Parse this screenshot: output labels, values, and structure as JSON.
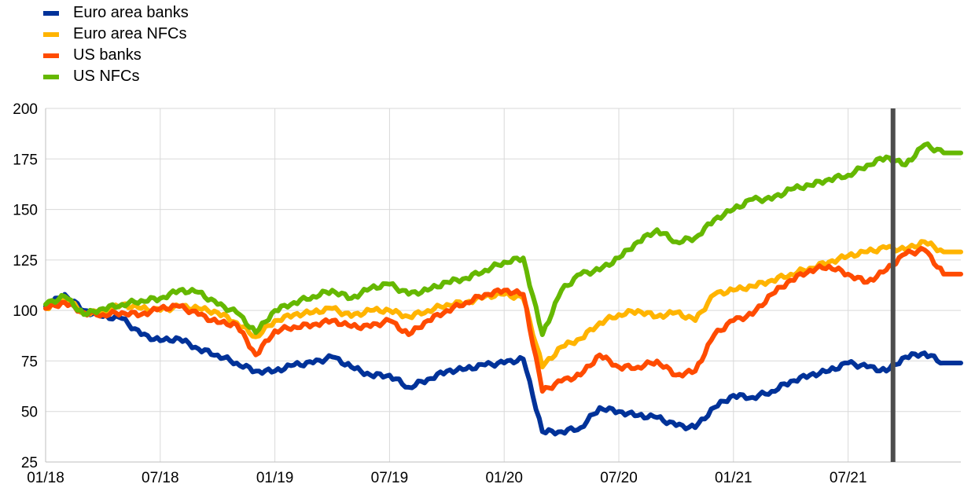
{
  "colors": {
    "euro_banks": "#003299",
    "euro_nfcs": "#FFB400",
    "us_banks": "#FF4B00",
    "us_nfcs": "#65B800",
    "vline": "#4d4d4d",
    "grid": "#d9d9d9"
  },
  "chart_data": {
    "type": "line",
    "title": "",
    "xlabel": "",
    "ylabel": "",
    "ylim": [
      25,
      200
    ],
    "yticks": [
      25,
      50,
      75,
      100,
      125,
      150,
      175,
      200
    ],
    "xlim": [
      "2018-01-01",
      "2021-12-31"
    ],
    "xticks": [
      "01/18",
      "07/18",
      "01/19",
      "07/19",
      "01/20",
      "07/20",
      "01/21",
      "07/21"
    ],
    "grid": true,
    "legend_position": "top-left",
    "vertical_marker": "2021-09",
    "series": [
      {
        "name": "Euro area banks",
        "x": [
          "2018-01",
          "2018-02",
          "2018-03",
          "2018-04",
          "2018-05",
          "2018-06",
          "2018-07",
          "2018-08",
          "2018-09",
          "2018-10",
          "2018-11",
          "2018-12",
          "2019-01",
          "2019-02",
          "2019-03",
          "2019-04",
          "2019-05",
          "2019-06",
          "2019-07",
          "2019-08",
          "2019-09",
          "2019-10",
          "2019-11",
          "2019-12",
          "2020-01",
          "2020-02",
          "2020-03",
          "2020-04",
          "2020-05",
          "2020-06",
          "2020-07",
          "2020-08",
          "2020-09",
          "2020-10",
          "2020-11",
          "2020-12",
          "2021-01",
          "2021-02",
          "2021-03",
          "2021-04",
          "2021-05",
          "2021-06",
          "2021-07",
          "2021-08",
          "2021-09",
          "2021-10",
          "2021-11",
          "2021-12"
        ],
        "values": [
          102,
          108,
          100,
          97,
          96,
          88,
          85,
          86,
          81,
          78,
          74,
          70,
          70,
          73,
          74,
          77,
          72,
          68,
          68,
          62,
          66,
          70,
          71,
          73,
          74,
          76,
          40,
          40,
          42,
          52,
          50,
          48,
          47,
          43,
          42,
          52,
          58,
          57,
          60,
          65,
          68,
          70,
          74,
          72,
          70,
          77,
          79,
          74
        ]
      },
      {
        "name": "Euro area NFCs",
        "x": [
          "2018-01",
          "2018-02",
          "2018-03",
          "2018-04",
          "2018-05",
          "2018-06",
          "2018-07",
          "2018-08",
          "2018-09",
          "2018-10",
          "2018-11",
          "2018-12",
          "2019-01",
          "2019-02",
          "2019-03",
          "2019-04",
          "2019-05",
          "2019-06",
          "2019-07",
          "2019-08",
          "2019-09",
          "2019-10",
          "2019-11",
          "2019-12",
          "2020-01",
          "2020-02",
          "2020-03",
          "2020-04",
          "2020-05",
          "2020-06",
          "2020-07",
          "2020-08",
          "2020-09",
          "2020-10",
          "2020-11",
          "2020-12",
          "2021-01",
          "2021-02",
          "2021-03",
          "2021-04",
          "2021-05",
          "2021-06",
          "2021-07",
          "2021-08",
          "2021-09",
          "2021-10",
          "2021-11",
          "2021-12"
        ],
        "values": [
          101,
          106,
          99,
          99,
          103,
          101,
          100,
          102,
          101,
          99,
          94,
          87,
          95,
          98,
          99,
          101,
          97,
          100,
          100,
          97,
          100,
          103,
          104,
          107,
          108,
          106,
          72,
          82,
          86,
          94,
          98,
          100,
          97,
          99,
          95,
          108,
          110,
          112,
          115,
          118,
          121,
          124,
          127,
          129,
          131,
          130,
          134,
          129
        ]
      },
      {
        "name": "US banks",
        "x": [
          "2018-01",
          "2018-02",
          "2018-03",
          "2018-04",
          "2018-05",
          "2018-06",
          "2018-07",
          "2018-08",
          "2018-09",
          "2018-10",
          "2018-11",
          "2018-12",
          "2019-01",
          "2019-02",
          "2019-03",
          "2019-04",
          "2019-05",
          "2019-06",
          "2019-07",
          "2019-08",
          "2019-09",
          "2019-10",
          "2019-11",
          "2019-12",
          "2020-01",
          "2020-02",
          "2020-03",
          "2020-04",
          "2020-05",
          "2020-06",
          "2020-07",
          "2020-08",
          "2020-09",
          "2020-10",
          "2020-11",
          "2020-12",
          "2021-01",
          "2021-02",
          "2021-03",
          "2021-04",
          "2021-05",
          "2021-06",
          "2021-07",
          "2021-08",
          "2021-09",
          "2021-10",
          "2021-11",
          "2021-12"
        ],
        "values": [
          101,
          104,
          99,
          98,
          99,
          98,
          101,
          102,
          98,
          94,
          93,
          78,
          90,
          92,
          93,
          95,
          92,
          92,
          95,
          88,
          95,
          100,
          104,
          108,
          110,
          108,
          60,
          65,
          68,
          78,
          72,
          72,
          75,
          68,
          70,
          88,
          95,
          98,
          108,
          115,
          120,
          122,
          118,
          114,
          120,
          128,
          130,
          118
        ]
      },
      {
        "name": "US NFCs",
        "x": [
          "2018-01",
          "2018-02",
          "2018-03",
          "2018-04",
          "2018-05",
          "2018-06",
          "2018-07",
          "2018-08",
          "2018-09",
          "2018-10",
          "2018-11",
          "2018-12",
          "2019-01",
          "2019-02",
          "2019-03",
          "2019-04",
          "2019-05",
          "2019-06",
          "2019-07",
          "2019-08",
          "2019-09",
          "2019-10",
          "2019-11",
          "2019-12",
          "2020-01",
          "2020-02",
          "2020-03",
          "2020-04",
          "2020-05",
          "2020-06",
          "2020-07",
          "2020-08",
          "2020-09",
          "2020-10",
          "2020-11",
          "2020-12",
          "2021-01",
          "2021-02",
          "2021-03",
          "2021-04",
          "2021-05",
          "2021-06",
          "2021-07",
          "2021-08",
          "2021-09",
          "2021-10",
          "2021-11",
          "2021-12"
        ],
        "values": [
          103,
          107,
          98,
          101,
          103,
          105,
          106,
          110,
          109,
          103,
          99,
          89,
          100,
          104,
          107,
          110,
          106,
          111,
          113,
          108,
          110,
          114,
          116,
          120,
          124,
          126,
          88,
          110,
          118,
          120,
          126,
          134,
          140,
          134,
          136,
          145,
          150,
          155,
          155,
          160,
          162,
          165,
          167,
          172,
          176,
          172,
          182,
          178
        ]
      }
    ]
  }
}
